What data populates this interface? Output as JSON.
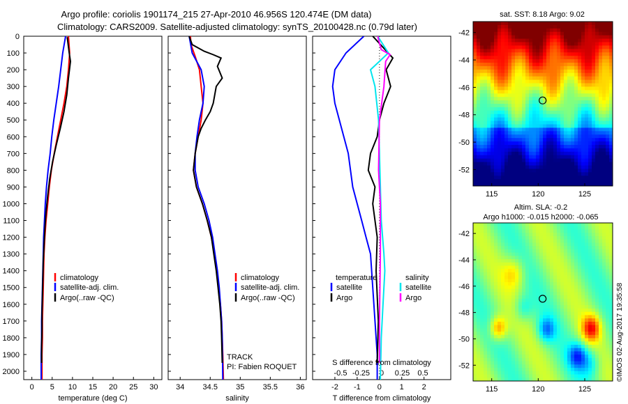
{
  "header": {
    "line1": "Argo profile: coriolis 1901174_215 27-Apr-2010 46.956S 120.474E (DM data)",
    "line2": "Climatology: CARS2009. Satellite-adjusted climatology: synTS_20100428.nc (0.79d later)"
  },
  "credit": "©IMOS 02-Aug-2017 19:35:58",
  "colors": {
    "climatology": "#ff0000",
    "satellite": "#0000ff",
    "argo": "#000000",
    "satellite_salinity": "#00e5ee",
    "argo_salinity": "#ff00ff"
  },
  "chart_data": [
    {
      "id": "temperature",
      "type": "line",
      "xlabel": "temperature (deg C)",
      "ylabel": "",
      "xlim": [
        -2,
        32
      ],
      "ylim": [
        2050,
        0
      ],
      "y_reversed": true,
      "xticks": [
        0,
        5,
        10,
        15,
        20,
        25,
        30
      ],
      "xticklabels": [
        "0",
        "5",
        "10",
        "15",
        "20",
        "25",
        "30"
      ],
      "yticks": [
        0,
        100,
        200,
        300,
        400,
        500,
        600,
        700,
        800,
        900,
        1000,
        1100,
        1200,
        1300,
        1400,
        1500,
        1600,
        1700,
        1800,
        1900,
        2000
      ],
      "yticklabels": [
        "0",
        "100",
        "200",
        "300",
        "400",
        "500",
        "600",
        "700",
        "800",
        "900",
        "1000",
        "1100",
        "1200",
        "1300",
        "1400",
        "1500",
        "1600",
        "1700",
        "1800",
        "1900",
        "2000"
      ],
      "legend": [
        "climatology",
        "satellite-adj. clim.",
        "Argo(..raw -QC)"
      ],
      "series": [
        {
          "name": "climatology",
          "color": "#ff0000",
          "x": [
            9.0,
            9.3,
            9.0,
            8.6,
            7.9,
            7.1,
            6.3,
            5.5,
            4.8,
            4.3,
            3.9,
            3.5,
            3.2,
            3.0,
            2.9,
            2.8,
            2.7,
            2.6,
            2.6,
            2.5,
            2.5,
            2.5
          ],
          "y": [
            0,
            100,
            200,
            300,
            400,
            500,
            600,
            700,
            800,
            900,
            1000,
            1100,
            1200,
            1300,
            1400,
            1500,
            1600,
            1700,
            1800,
            1900,
            2000,
            2050
          ]
        },
        {
          "name": "satellite-adj. clim.",
          "color": "#0000ff",
          "x": [
            8.3,
            7.6,
            7.1,
            6.6,
            6.0,
            5.4,
            4.9,
            4.5,
            4.0,
            3.6,
            3.3,
            3.1,
            2.9,
            2.8,
            2.7,
            2.6,
            2.5,
            2.4,
            2.4,
            2.3,
            2.3,
            2.3
          ],
          "y": [
            0,
            100,
            200,
            300,
            400,
            500,
            600,
            700,
            800,
            900,
            1000,
            1100,
            1200,
            1300,
            1400,
            1500,
            1600,
            1700,
            1800,
            1900,
            2000,
            2050
          ]
        },
        {
          "name": "Argo(..raw -QC)",
          "color": "#000000",
          "x": [
            8.7,
            9.2,
            9.5,
            9.0,
            8.6,
            7.9,
            7.0,
            6.0,
            5.1,
            4.4,
            3.9,
            3.5,
            3.2,
            3.0,
            2.8,
            2.7,
            2.6,
            2.5,
            2.5,
            2.4,
            2.4
          ],
          "y": [
            5,
            100,
            150,
            250,
            350,
            450,
            550,
            650,
            750,
            850,
            950,
            1050,
            1150,
            1250,
            1350,
            1450,
            1550,
            1650,
            1750,
            1850,
            1950
          ]
        }
      ]
    },
    {
      "id": "salinity",
      "type": "line",
      "xlabel": "salinity",
      "xlim": [
        33.8,
        36.1
      ],
      "ylim": [
        2050,
        0
      ],
      "y_reversed": true,
      "xticks": [
        34,
        34.5,
        35,
        35.5,
        36
      ],
      "xticklabels": [
        "34",
        "34.5",
        "35",
        "35.5",
        "36"
      ],
      "legend": [
        "climatology",
        "satellite-adj. clim.",
        "Argo(..raw -QC)"
      ],
      "annotations": [
        "TRACK",
        "PI: Fabien ROQUET"
      ],
      "series": [
        {
          "name": "climatology",
          "color": "#ff0000",
          "x": [
            34.17,
            34.18,
            34.25,
            34.32,
            34.35,
            34.38,
            34.35,
            34.3,
            34.25,
            34.22,
            34.27,
            34.37,
            34.45,
            34.52,
            34.57,
            34.61,
            34.64,
            34.67,
            34.69,
            34.7,
            34.71,
            34.72
          ],
          "y": [
            0,
            50,
            120,
            200,
            300,
            400,
            500,
            600,
            700,
            800,
            900,
            1000,
            1100,
            1200,
            1300,
            1400,
            1500,
            1600,
            1700,
            1800,
            1900,
            2050
          ]
        },
        {
          "name": "satellite-adj. clim.",
          "color": "#0000ff",
          "x": [
            34.15,
            34.2,
            34.35,
            34.4,
            34.38,
            34.32,
            34.28,
            34.25,
            34.25,
            34.3,
            34.4,
            34.48,
            34.54,
            34.58,
            34.62,
            34.65,
            34.67,
            34.69,
            34.7,
            34.71
          ],
          "y": [
            0,
            100,
            200,
            300,
            400,
            500,
            600,
            700,
            800,
            900,
            1000,
            1100,
            1200,
            1300,
            1400,
            1500,
            1600,
            1700,
            1800,
            2050
          ]
        },
        {
          "name": "Argo(..raw -QC)",
          "color": "#000000",
          "x": [
            34.15,
            34.2,
            34.4,
            34.55,
            34.68,
            34.62,
            34.7,
            34.6,
            34.55,
            34.5,
            34.42,
            34.35,
            34.3,
            34.25,
            34.22,
            34.27,
            34.37,
            34.45,
            34.52,
            34.56,
            34.6,
            34.63,
            34.66,
            34.68,
            34.69,
            34.7
          ],
          "y": [
            0,
            50,
            90,
            110,
            130,
            180,
            250,
            300,
            400,
            450,
            500,
            550,
            600,
            700,
            800,
            900,
            1000,
            1100,
            1200,
            1300,
            1400,
            1500,
            1600,
            1700,
            1800,
            1950
          ]
        }
      ]
    },
    {
      "id": "difference",
      "type": "line",
      "xlabel": "T difference from climatology",
      "top_label": "S difference from climatology",
      "xlim": [
        -3,
        3.2
      ],
      "ylim": [
        2050,
        0
      ],
      "y_reversed": true,
      "xticks": [
        -2,
        -1,
        0,
        1,
        2
      ],
      "xticklabels": [
        "-2",
        "-1",
        "0",
        "1",
        "2"
      ],
      "secondary_xticks": [
        -0.5,
        -0.25,
        0,
        0.25,
        0.5
      ],
      "secondary_xticklabels": [
        "-0.5",
        "-0.25",
        "0",
        "0.25",
        "0.5"
      ],
      "legend_groups": [
        {
          "title": "temperature",
          "entries": [
            "satellite",
            "Argo"
          ]
        },
        {
          "title": "salinity",
          "entries": [
            "satellite",
            "Argo"
          ]
        }
      ],
      "series": [
        {
          "name": "satellite",
          "quantity": "temperature",
          "color": "#0000ff",
          "x": [
            -0.7,
            -1.5,
            -2.0,
            -2.1,
            -2.0,
            -1.8,
            -1.6,
            -1.4,
            -1.3,
            -1.2,
            -1.0,
            -0.8,
            -0.6,
            -0.4,
            -0.3,
            -0.2,
            -0.1,
            -0.1
          ],
          "y": [
            0,
            100,
            200,
            300,
            400,
            500,
            600,
            700,
            800,
            900,
            1000,
            1100,
            1200,
            1300,
            1500,
            1700,
            1900,
            2050
          ]
        },
        {
          "name": "Argo",
          "quantity": "temperature",
          "color": "#000000",
          "x": [
            -0.3,
            0.6,
            0.3,
            0.5,
            0.2,
            0.0,
            -0.1,
            -0.4,
            -0.5,
            -0.2,
            -0.3,
            -0.1,
            -0.15,
            -0.05,
            -0.1
          ],
          "y": [
            0,
            130,
            200,
            300,
            400,
            500,
            600,
            700,
            800,
            900,
            1000,
            1200,
            1400,
            1700,
            1950
          ]
        },
        {
          "name": "satellite",
          "quantity": "salinity",
          "color": "#00e5ee",
          "x": [
            -0.02,
            0.1,
            -0.1,
            -0.05,
            -0.01,
            0.0,
            0.01,
            0.02,
            0.05,
            0.06,
            0.04,
            0.02,
            0.01
          ],
          "y": [
            0,
            100,
            200,
            300,
            500,
            700,
            900,
            1100,
            1300,
            1400,
            1600,
            1800,
            2050
          ]
        },
        {
          "name": "Argo",
          "quantity": "salinity",
          "color": "#ff00ff",
          "x": [
            -0.02,
            0.02,
            0.12,
            0.07,
            0.05,
            0.0,
            -0.01,
            0.01,
            0.01,
            0.0,
            0.0
          ],
          "y": [
            0,
            80,
            110,
            150,
            300,
            500,
            800,
            1000,
            1300,
            1700,
            1950
          ]
        }
      ]
    },
    {
      "id": "sst-map",
      "type": "heatmap",
      "title": "sat. SST: 8.18 Argo: 9.02",
      "xlim": [
        113,
        128
      ],
      "ylim": [
        -53.2,
        -41.2
      ],
      "xticks": [
        115,
        120,
        125
      ],
      "xticklabels": [
        "115",
        "120",
        "125"
      ],
      "yticks": [
        -42,
        -44,
        -46,
        -48,
        -50,
        -52
      ],
      "yticklabels": [
        "-42",
        "-44",
        "-46",
        "-48",
        "-50",
        "-52"
      ],
      "marker": {
        "lon": 120.474,
        "lat": -46.956
      }
    },
    {
      "id": "sla-map",
      "type": "heatmap",
      "title_lines": [
        "Altim. SLA: -0.2",
        "Argo h1000: -0.015 h2000: -0.065"
      ],
      "xlim": [
        113,
        128
      ],
      "ylim": [
        -53.2,
        -41.2
      ],
      "xticks": [
        115,
        120,
        125
      ],
      "xticklabels": [
        "115",
        "120",
        "125"
      ],
      "yticks": [
        -42,
        -44,
        -46,
        -48,
        -50,
        -52
      ],
      "yticklabels": [
        "-42",
        "-44",
        "-46",
        "-48",
        "-50",
        "-52"
      ],
      "marker": {
        "lon": 120.474,
        "lat": -46.956
      }
    }
  ]
}
